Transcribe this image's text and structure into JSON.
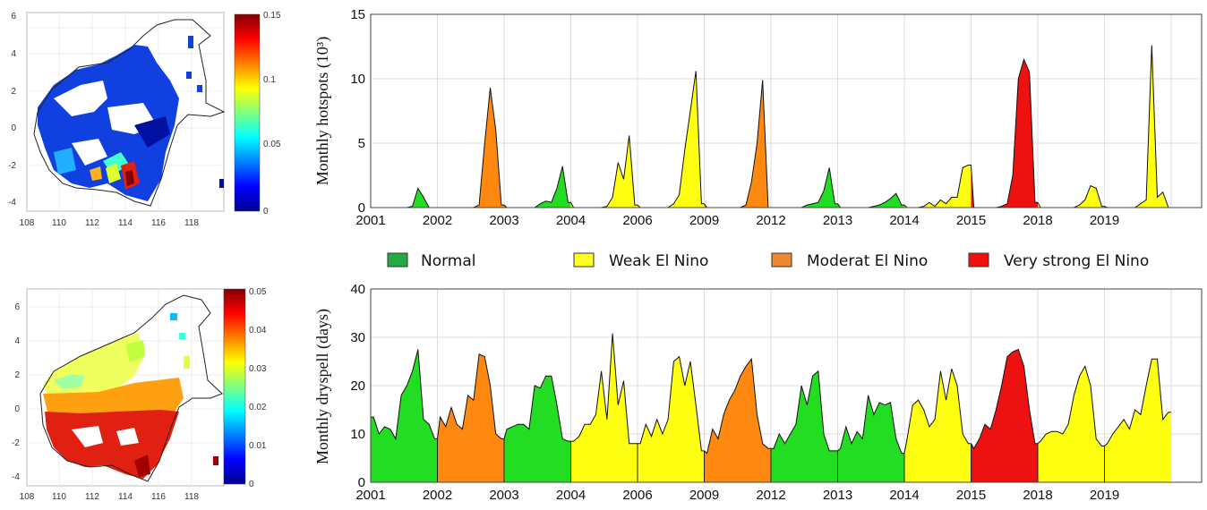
{
  "colors": {
    "Normal": "#22dd22",
    "Weak El Nino": "#ffff11",
    "Moderat El Nino": "#ff8811",
    "Very strong El Nino": "#ee1111"
  },
  "legend": [
    {
      "label": "Normal",
      "color": "#22aa44"
    },
    {
      "label": "Weak El Nino",
      "color": "#ffff22"
    },
    {
      "label": "Moderat El Nino",
      "color": "#ee8833"
    },
    {
      "label": "Very strong El Nino",
      "color": "#ee1111"
    }
  ],
  "chart_data": [
    {
      "type": "heatmap",
      "xticks": [
        "108",
        "110",
        "112",
        "114",
        "116",
        "118"
      ],
      "yticks": [
        "6",
        "4",
        "2",
        "0",
        "-2",
        "-4"
      ],
      "colorbar_ticks": [
        "0.15",
        "0.1",
        "0.05",
        "0"
      ],
      "colormap": "jet"
    },
    {
      "type": "area",
      "ylabel": "Monthly hotspots (10³)",
      "ylim": [
        0,
        15
      ],
      "yticks": [
        "15",
        "10",
        "5",
        "0"
      ],
      "categories": [
        "2001",
        "2002",
        "2003",
        "2004",
        "2006",
        "2009",
        "2012",
        "2013",
        "2014",
        "2015",
        "2018",
        "2019"
      ],
      "segment_class": [
        "Normal",
        "Moderat El Nino",
        "Normal",
        "Weak El Nino",
        "Weak El Nino",
        "Moderat El Nino",
        "Normal",
        "Normal",
        "Weak El Nino",
        "Very strong El Nino",
        "Weak El Nino",
        "Weak El Nino"
      ],
      "segments": [
        [
          0,
          0,
          0,
          0,
          0,
          0,
          0,
          0.1,
          1.5,
          0.8,
          0,
          0
        ],
        [
          0,
          0,
          0,
          0,
          0,
          0,
          0,
          0.2,
          5,
          9.3,
          6,
          0.2
        ],
        [
          0,
          0,
          0,
          0,
          0,
          0,
          0.3,
          0.5,
          0.4,
          1.5,
          3.2,
          0.4
        ],
        [
          0,
          0,
          0,
          0,
          0,
          0,
          0.1,
          0.8,
          3.5,
          2.2,
          5.6,
          0.2
        ],
        [
          0,
          0,
          0,
          0,
          0,
          0,
          0.3,
          1,
          4.5,
          7.5,
          10.6,
          0.3
        ],
        [
          0,
          0,
          0,
          0,
          0,
          0,
          0,
          0.2,
          2,
          5,
          9.9,
          0
        ],
        [
          0,
          0,
          0,
          0,
          0,
          0,
          0.2,
          0.3,
          0.4,
          1.3,
          3.1,
          0.3
        ],
        [
          0,
          0,
          0,
          0,
          0,
          0,
          0.1,
          0.2,
          0.4,
          0.7,
          1.1,
          0.2
        ],
        [
          0,
          0,
          0,
          0.1,
          0.4,
          0.1,
          0.6,
          0.3,
          0.8,
          0.8,
          3.1,
          3.3
        ],
        [
          0,
          0,
          0,
          0,
          0,
          0.1,
          0.3,
          2.5,
          10,
          11.5,
          10.5,
          0.4
        ],
        [
          0,
          0,
          0,
          0,
          0,
          0,
          0,
          0.2,
          0.6,
          1.7,
          1.5,
          0.1
        ],
        [
          0,
          0,
          0,
          0,
          0,
          0,
          0.3,
          0.6,
          12.6,
          0.8,
          1.2,
          0
        ]
      ]
    },
    {
      "type": "heatmap",
      "xticks": [
        "108",
        "110",
        "112",
        "114",
        "116",
        "118"
      ],
      "yticks": [
        "6",
        "4",
        "2",
        "0",
        "-2",
        "-4"
      ],
      "colorbar_ticks": [
        "0.05",
        "0.04",
        "0.03",
        "0.02",
        "0.01",
        "0"
      ],
      "colormap": "jet"
    },
    {
      "type": "area",
      "ylabel": "Monthly dryspell (days)",
      "ylim": [
        0,
        40
      ],
      "yticks": [
        "40",
        "30",
        "20",
        "10",
        "0"
      ],
      "categories": [
        "2001",
        "2002",
        "2003",
        "2004",
        "2006",
        "2009",
        "2012",
        "2013",
        "2014",
        "2015",
        "2018",
        "2019"
      ],
      "segment_class": [
        "Normal",
        "Moderat El Nino",
        "Normal",
        "Weak El Nino",
        "Weak El Nino",
        "Moderat El Nino",
        "Normal",
        "Normal",
        "Weak El Nino",
        "Very strong El Nino",
        "Weak El Nino",
        "Weak El Nino"
      ],
      "segments": [
        [
          13.5,
          10,
          11.5,
          11,
          9,
          18,
          20,
          23,
          27.5,
          13,
          12,
          9
        ],
        [
          13.5,
          11.5,
          15.5,
          12,
          11,
          18,
          17,
          26.5,
          26,
          20,
          10,
          9
        ],
        [
          11,
          11.5,
          12,
          12,
          11,
          20,
          19.5,
          22,
          22,
          16,
          9,
          8.5
        ],
        [
          8.5,
          9.5,
          12,
          12,
          14,
          23,
          13,
          30.8,
          16,
          21,
          8,
          8
        ],
        [
          8,
          12,
          9.5,
          13,
          10,
          13,
          25,
          26,
          20,
          25,
          16,
          6.5
        ],
        [
          6,
          11,
          9,
          14,
          17,
          19,
          22,
          24,
          25.5,
          14,
          8,
          7
        ],
        [
          7,
          10,
          8,
          10,
          12,
          20,
          16,
          22,
          23,
          10,
          6.5,
          6.5
        ],
        [
          7,
          11.5,
          8,
          10.5,
          9,
          18,
          14,
          16.5,
          16,
          16.5,
          9,
          6
        ],
        [
          9,
          16,
          17,
          15,
          11.5,
          13,
          23,
          17,
          23.5,
          20,
          10,
          8
        ],
        [
          7,
          9,
          12,
          11,
          15,
          20,
          26,
          27,
          27.5,
          24,
          15,
          8
        ],
        [
          8.5,
          10,
          10.5,
          10.5,
          10,
          12,
          18,
          22,
          24,
          20,
          9,
          7.5
        ],
        [
          8,
          10,
          11.5,
          13,
          11,
          15,
          14,
          20,
          25.5,
          25.5,
          13,
          14.5
        ]
      ]
    }
  ]
}
